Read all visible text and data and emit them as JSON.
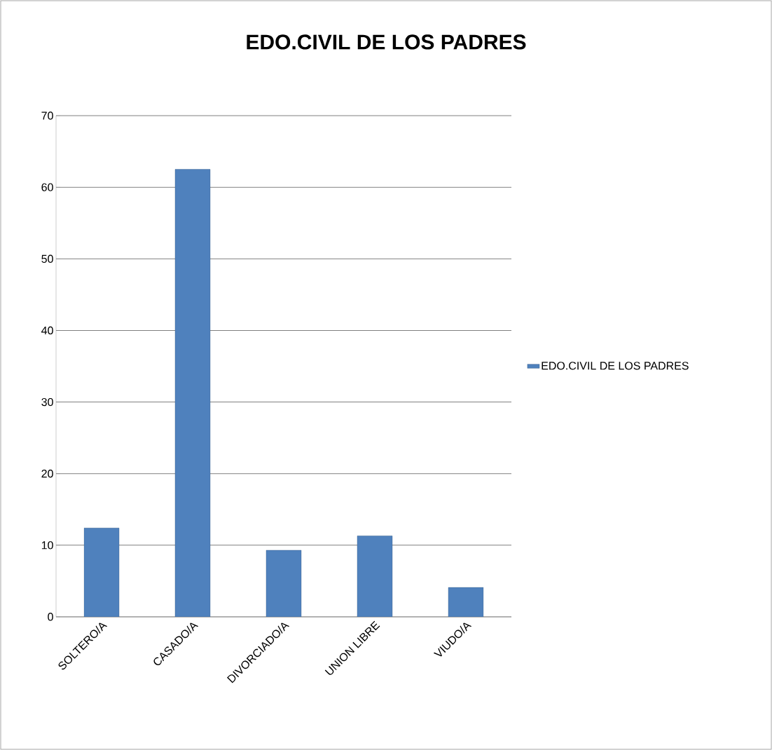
{
  "chart_data": {
    "type": "bar",
    "title": "EDO.CIVIL DE LOS PADRES",
    "categories": [
      "SOLTERO/A",
      "CASADO/A",
      "DIVORCIADO/A",
      "UNION LIBRE",
      "VIUDO/A"
    ],
    "series": [
      {
        "name": "EDO.CIVIL DE LOS PADRES",
        "color": "#4f81bd",
        "values": [
          12.4,
          62.5,
          9.3,
          11.3,
          4.1
        ]
      }
    ],
    "ylim": [
      0,
      70
    ],
    "yticks": [
      0,
      10,
      20,
      30,
      40,
      50,
      60,
      70
    ],
    "grid": "y",
    "legend": "right"
  }
}
